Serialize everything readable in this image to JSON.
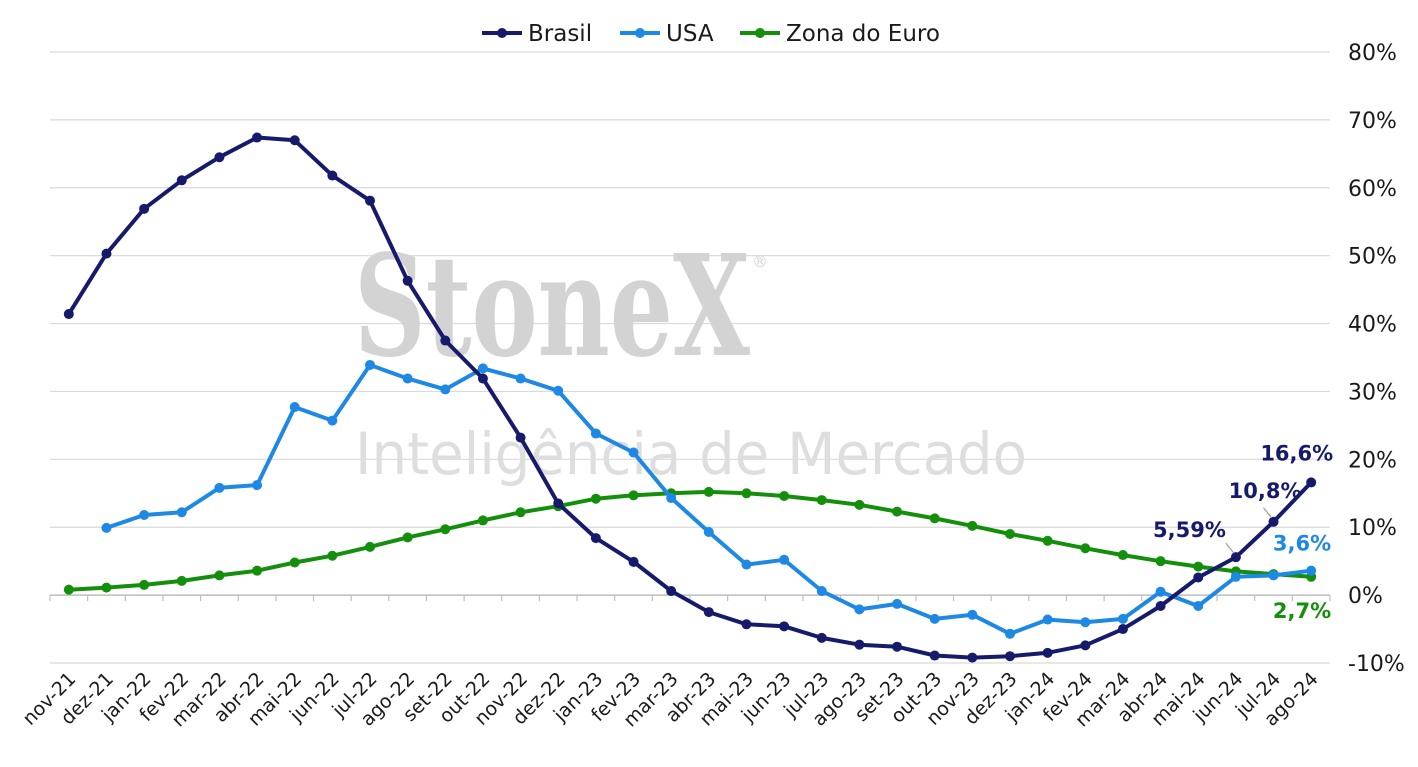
{
  "watermark": {
    "brand": "StoneX",
    "registered": "®",
    "subtitle": "Inteligência de Mercado"
  },
  "chart_data": {
    "type": "line",
    "categories": [
      "nov-21",
      "dez-21",
      "jan-22",
      "fev-22",
      "mar-22",
      "abr-22",
      "mai-22",
      "jun-22",
      "jul-22",
      "ago-22",
      "set-22",
      "out-22",
      "nov-22",
      "dez-22",
      "jan-23",
      "fev-23",
      "mar-23",
      "abr-23",
      "mai-23",
      "jun-23",
      "jul-23",
      "ago-23",
      "set-23",
      "out-23",
      "nov-23",
      "dez-23",
      "jan-24",
      "fev-24",
      "mar-24",
      "abr-24",
      "mai-24",
      "jun-24",
      "jul-24",
      "ago-24"
    ],
    "yticks": [
      -10,
      0,
      10,
      20,
      30,
      40,
      50,
      60,
      70,
      80
    ],
    "ytick_labels": [
      "-10%",
      "0%",
      "10%",
      "20%",
      "30%",
      "40%",
      "50%",
      "60%",
      "70%",
      "80%"
    ],
    "ylim": [
      -10,
      80
    ],
    "y_axis_side": "right",
    "grid": true,
    "legend_position": "top-center",
    "series": [
      {
        "name": "Brasil",
        "color": "#151a6b",
        "values": [
          41.4,
          50.3,
          56.9,
          61.1,
          64.5,
          67.4,
          67.0,
          61.8,
          58.1,
          46.3,
          37.5,
          31.9,
          23.2,
          13.5,
          8.4,
          4.9,
          0.6,
          -2.5,
          -4.3,
          -4.6,
          -6.3,
          -7.3,
          -7.6,
          -8.9,
          -9.2,
          -9.0,
          -8.5,
          -7.4,
          -5.0,
          -1.6,
          2.6,
          5.59,
          10.8,
          16.6
        ]
      },
      {
        "name": "USA",
        "color": "#1e88e5",
        "values": [
          null,
          9.9,
          11.8,
          12.2,
          15.8,
          16.2,
          27.7,
          25.7,
          33.9,
          31.9,
          30.3,
          33.4,
          31.9,
          30.1,
          23.8,
          21.0,
          14.3,
          9.3,
          4.5,
          5.2,
          0.6,
          -2.1,
          -1.3,
          -3.5,
          -2.9,
          -5.7,
          -3.6,
          -4.0,
          -3.5,
          0.5,
          -1.6,
          2.7,
          2.9,
          3.6
        ]
      },
      {
        "name": "Zona do Euro",
        "color": "#138f0c",
        "values": [
          0.8,
          1.1,
          1.5,
          2.1,
          2.9,
          3.6,
          4.8,
          5.8,
          7.1,
          8.5,
          9.7,
          11.0,
          12.2,
          13.1,
          14.2,
          14.7,
          15.0,
          15.2,
          15.0,
          14.6,
          14.0,
          13.3,
          12.3,
          11.3,
          10.2,
          9.0,
          8.0,
          6.9,
          5.9,
          5.0,
          4.2,
          3.5,
          3.1,
          2.7
        ]
      }
    ],
    "annotations": [
      {
        "series": 0,
        "index": 31,
        "text": "5,59%"
      },
      {
        "series": 0,
        "index": 32,
        "text": "10,8%"
      },
      {
        "series": 0,
        "index": 33,
        "text": "16,6%"
      },
      {
        "series": 1,
        "index": 33,
        "text": "3,6%"
      },
      {
        "series": 2,
        "index": 33,
        "text": "2,7%"
      }
    ]
  }
}
